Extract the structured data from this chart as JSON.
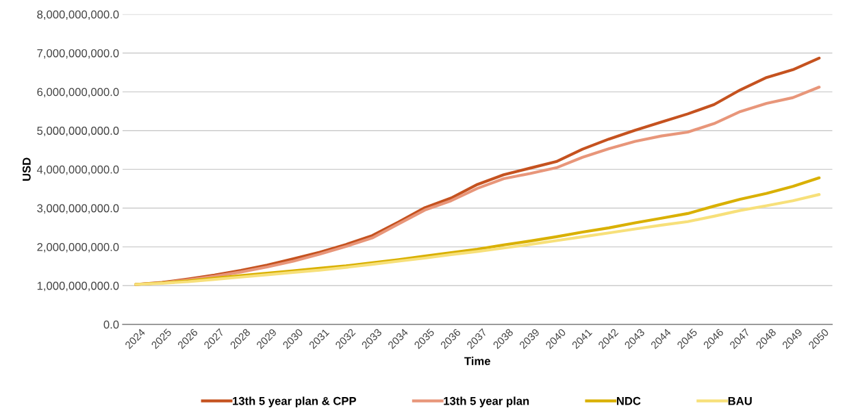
{
  "chart_data": {
    "type": "line",
    "xlabel": "Time",
    "ylabel": "USD",
    "categories": [
      "2024",
      "2025",
      "2026",
      "2027",
      "2028",
      "2029",
      "2030",
      "2031",
      "2032",
      "2033",
      "2034",
      "2035",
      "2036",
      "2037",
      "2038",
      "2039",
      "2040",
      "2041",
      "2042",
      "2043",
      "2044",
      "2045",
      "2046",
      "2047",
      "2048",
      "2049",
      "2050"
    ],
    "series": [
      {
        "name": "13th 5 year plan & CPP",
        "color": "#c5521f",
        "values": [
          1030000000,
          1080000000,
          1170000000,
          1270000000,
          1390000000,
          1530000000,
          1690000000,
          1860000000,
          2060000000,
          2290000000,
          2640000000,
          3010000000,
          3260000000,
          3610000000,
          3860000000,
          4030000000,
          4200000000,
          4520000000,
          4780000000,
          5010000000,
          5220000000,
          5430000000,
          5670000000,
          6050000000,
          6370000000,
          6570000000,
          6870000000
        ]
      },
      {
        "name": "13th 5 year plan",
        "color": "#e8967a",
        "values": [
          1030000000,
          1070000000,
          1150000000,
          1240000000,
          1350000000,
          1480000000,
          1630000000,
          1810000000,
          2010000000,
          2230000000,
          2590000000,
          2950000000,
          3190000000,
          3510000000,
          3760000000,
          3890000000,
          4040000000,
          4310000000,
          4530000000,
          4720000000,
          4860000000,
          4960000000,
          5180000000,
          5490000000,
          5700000000,
          5850000000,
          6120000000
        ]
      },
      {
        "name": "NDC",
        "color": "#d9b000",
        "values": [
          1030000000,
          1070000000,
          1120000000,
          1190000000,
          1260000000,
          1320000000,
          1380000000,
          1450000000,
          1510000000,
          1590000000,
          1670000000,
          1760000000,
          1850000000,
          1940000000,
          2050000000,
          2150000000,
          2260000000,
          2380000000,
          2490000000,
          2620000000,
          2740000000,
          2860000000,
          3050000000,
          3230000000,
          3380000000,
          3560000000,
          3780000000
        ]
      },
      {
        "name": "BAU",
        "color": "#f7e07a",
        "values": [
          1030000000,
          1060000000,
          1100000000,
          1160000000,
          1220000000,
          1280000000,
          1340000000,
          1400000000,
          1470000000,
          1550000000,
          1630000000,
          1710000000,
          1800000000,
          1880000000,
          1970000000,
          2060000000,
          2160000000,
          2260000000,
          2360000000,
          2460000000,
          2560000000,
          2650000000,
          2790000000,
          2940000000,
          3060000000,
          3190000000,
          3350000000
        ]
      }
    ],
    "ylim": [
      0,
      8000000000
    ],
    "yticks": [
      {
        "value": 0,
        "label": "0.0"
      },
      {
        "value": 1000000000,
        "label": "1,000,000,000.0"
      },
      {
        "value": 2000000000,
        "label": "2,000,000,000.0"
      },
      {
        "value": 3000000000,
        "label": "3,000,000,000.0"
      },
      {
        "value": 4000000000,
        "label": "4,000,000,000.0"
      },
      {
        "value": 5000000000,
        "label": "5,000,000,000.0"
      },
      {
        "value": 6000000000,
        "label": "6,000,000,000.0"
      },
      {
        "value": 7000000000,
        "label": "7,000,000,000.0"
      },
      {
        "value": 8000000000,
        "label": "8,000,000,000.0"
      }
    ],
    "grid": "y",
    "legend": "bottom",
    "marker": "none",
    "line_style": "solid"
  }
}
